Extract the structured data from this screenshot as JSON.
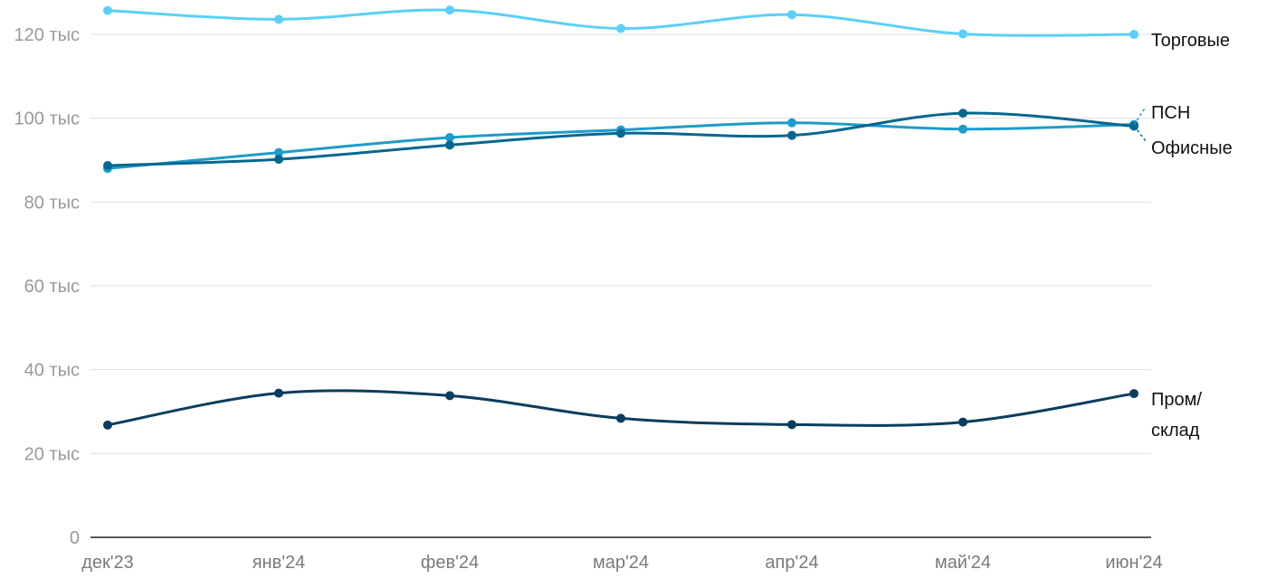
{
  "chart_data": {
    "type": "line",
    "categories": [
      "дек'23",
      "янв'24",
      "фев'24",
      "мар'24",
      "апр'24",
      "май'24",
      "июн'24"
    ],
    "ylim": [
      0,
      120000
    ],
    "yticks": [
      {
        "value": 0,
        "label": "0"
      },
      {
        "value": 20000,
        "label": "20 тыс"
      },
      {
        "value": 40000,
        "label": "40 тыс"
      },
      {
        "value": 60000,
        "label": "60 тыс"
      },
      {
        "value": 80000,
        "label": "80 тыс"
      },
      {
        "value": 100000,
        "label": "100 тыс"
      },
      {
        "value": 120000,
        "label": "120 тыс"
      }
    ],
    "grid": true,
    "series": [
      {
        "name": "Торговые",
        "color": "#5bd0f7",
        "values": [
          125700,
          123600,
          125800,
          121400,
          124700,
          120100,
          120000
        ],
        "label_lines": [
          "Торговые"
        ]
      },
      {
        "name": "ПСН",
        "color": "#1e9ccb",
        "values": [
          88000,
          91800,
          95400,
          97200,
          98900,
          97400,
          98500
        ],
        "label_lines": [
          "ПСН"
        ]
      },
      {
        "name": "Офисные",
        "color": "#06688f",
        "values": [
          88700,
          90200,
          93600,
          96400,
          95900,
          101200,
          98100
        ],
        "label_lines": [
          "Офисные"
        ]
      },
      {
        "name": "Пром/склад",
        "color": "#0b3d5e",
        "values": [
          26800,
          34400,
          33800,
          28400,
          26900,
          27500,
          34300
        ],
        "label_lines": [
          "Пром/",
          "склад"
        ]
      }
    ]
  }
}
